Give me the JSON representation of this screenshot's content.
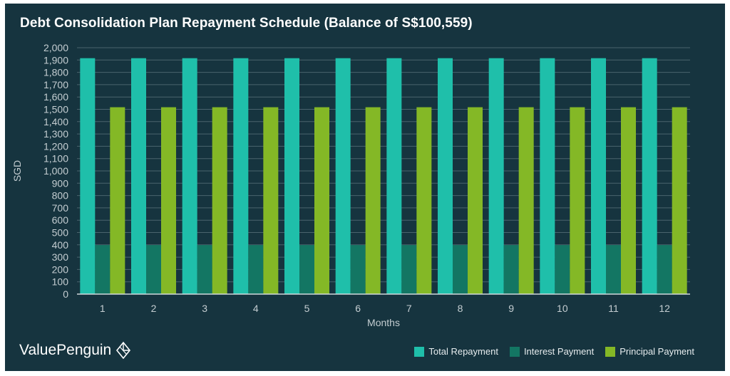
{
  "colors": {
    "background": "#16343f",
    "grid": "#4a646e",
    "axis": "#d0d8dc",
    "text": "#c4cdd1"
  },
  "brand": {
    "name": "ValuePenguin",
    "icon": "valuepenguin-logo-icon"
  },
  "chart_data": {
    "type": "bar",
    "title": "Debt Consolidation Plan Repayment Schedule (Balance of S$100,559)",
    "xlabel": "Months",
    "ylabel": "SGD",
    "ylim": [
      0,
      2000
    ],
    "ytick_step": 100,
    "grid": true,
    "legend_position": "bottom-right",
    "categories": [
      "1",
      "2",
      "3",
      "4",
      "5",
      "6",
      "7",
      "8",
      "9",
      "10",
      "11",
      "12"
    ],
    "series": [
      {
        "name": "Total Repayment",
        "color": "#1fbfaa",
        "values": [
          1915,
          1915,
          1915,
          1915,
          1915,
          1915,
          1915,
          1915,
          1915,
          1915,
          1915,
          1915
        ]
      },
      {
        "name": "Interest Payment",
        "color": "#137663",
        "values": [
          398,
          398,
          398,
          398,
          398,
          398,
          398,
          398,
          398,
          398,
          398,
          398
        ]
      },
      {
        "name": "Principal Payment",
        "color": "#84b826",
        "values": [
          1517,
          1517,
          1517,
          1517,
          1517,
          1517,
          1517,
          1517,
          1517,
          1517,
          1517,
          1517
        ]
      }
    ]
  }
}
